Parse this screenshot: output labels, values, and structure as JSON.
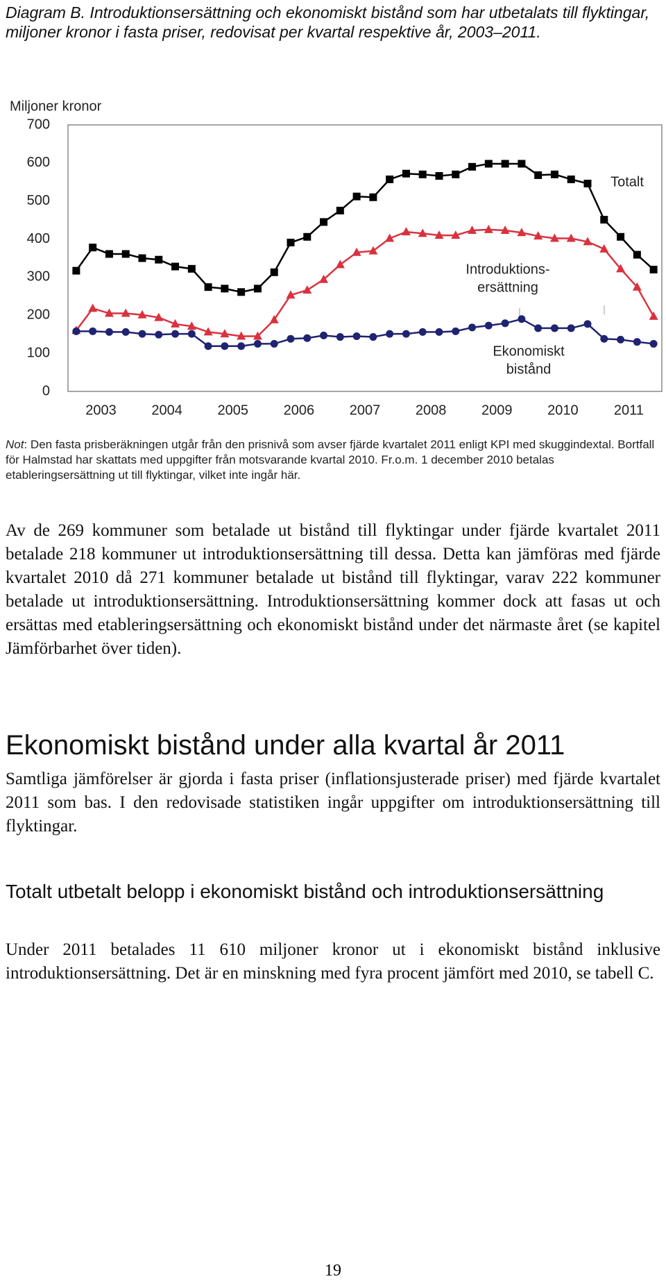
{
  "chart_data": {
    "type": "line",
    "title": "Diagram B. Introduktionsersättning och ekonomiskt bistånd som har utbetalats till flyktingar, miljoner kronor i fasta priser, redovisat per kvartal respektive år, 2003–2011.",
    "y_label": "Miljoner kronor",
    "categories": [
      "2003",
      null,
      null,
      null,
      "2004",
      null,
      null,
      null,
      "2005",
      null,
      null,
      null,
      "2006",
      null,
      null,
      null,
      "2007",
      null,
      null,
      null,
      "2008",
      null,
      null,
      null,
      "2009",
      null,
      null,
      null,
      "2010",
      null,
      null,
      null,
      "2011",
      null,
      null,
      null
    ],
    "ylim": [
      0,
      700
    ],
    "yticks": [
      0,
      100,
      200,
      300,
      400,
      500,
      600,
      700
    ],
    "grid": false,
    "series": [
      {
        "label_lines": [
          "Totalt"
        ],
        "color": "#000000",
        "marker": "square",
        "values": [
          317,
          378,
          361,
          361,
          350,
          346,
          328,
          322,
          274,
          270,
          261,
          270,
          313,
          391,
          406,
          445,
          475,
          512,
          510,
          557,
          572,
          570,
          566,
          570,
          590,
          598,
          598,
          598,
          568,
          570,
          557,
          546,
          451,
          406,
          359,
          320
        ]
      },
      {
        "label_lines": [
          "Introduktions-",
          "ersättning"
        ],
        "color": "#d9323e",
        "marker": "triangle",
        "values": [
          160,
          218,
          205,
          205,
          201,
          194,
          177,
          171,
          156,
          151,
          145,
          145,
          188,
          253,
          266,
          294,
          333,
          365,
          369,
          402,
          419,
          415,
          410,
          410,
          423,
          425,
          423,
          417,
          408,
          402,
          402,
          393,
          374,
          322,
          274,
          197
        ]
      },
      {
        "label_lines": [
          "Ekonomiskt",
          "bistånd"
        ],
        "color": "#1f2370",
        "marker": "circle",
        "values": [
          158,
          158,
          156,
          156,
          151,
          149,
          151,
          151,
          119,
          119,
          119,
          125,
          125,
          138,
          140,
          147,
          143,
          145,
          143,
          151,
          151,
          156,
          156,
          158,
          168,
          173,
          179,
          190,
          166,
          166,
          166,
          177,
          138,
          136,
          130,
          125
        ]
      }
    ],
    "note_label": "Not",
    "note": ": Den fasta prisberäkningen utgår från den prisnivå som avser fjärde kvartalet 2011 enligt KPI med skuggindextal. Bortfall för Halmstad har skattats med uppgifter från motsvarande kvartal 2010. Fr.o.m. 1 december 2010 betalas etableringsersättning ut till flyktingar, vilket inte ingår här."
  },
  "document": {
    "paragraphs": [
      "Av de 269 kommuner som betalade ut bistånd till flyktingar under fjärde kvartalet 2011 betalade 218 kommuner ut introduktionsersättning till dessa. Detta kan jämföras med fjärde kvartalet 2010 då 271 kommuner betalade ut bistånd till flyktingar, varav 222 kommuner betalade ut introduktionsersättning. Introduktionsersättning kommer dock att fasas ut och ersättas med etableringsersättning och ekonomiskt bistånd under det närmaste året (se kapitel Jämförbarhet över tiden).",
      "Samtliga jämförelser är gjorda i fasta priser (inflationsjusterade priser) med fjärde kvartalet 2011 som bas. I den redovisade statistiken ingår uppgifter om introduktionsersättning till flyktingar.",
      "Under 2011 betalades 11 610 miljoner kronor ut i ekonomiskt bistånd inklusive introduktionsersättning. Det är en minskning med fyra procent jämfört med 2010, se tabell C."
    ],
    "heading": "Ekonomiskt bistånd under alla kvartal år 2011",
    "subheading": "Totalt utbetalt belopp i ekonomiskt bistånd och introduktionsersättning",
    "page_number": "19"
  }
}
